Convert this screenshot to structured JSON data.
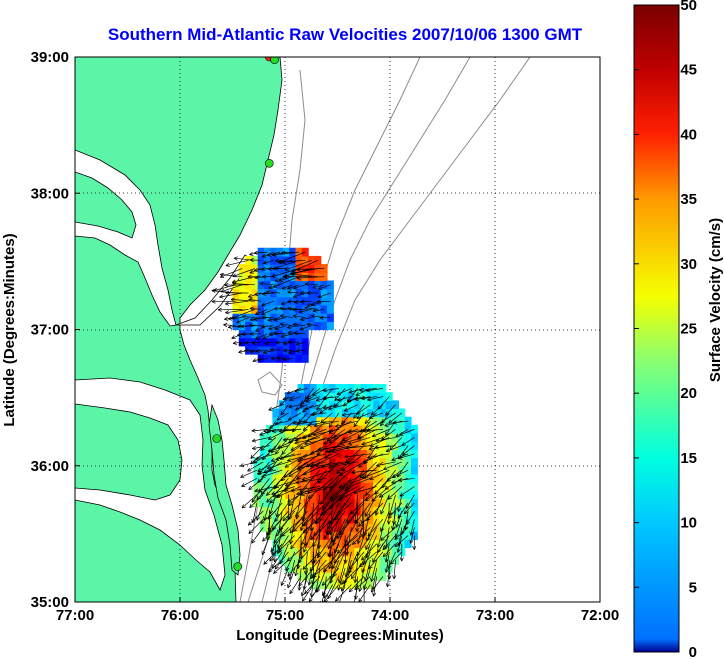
{
  "chart_data": {
    "type": "heatmap",
    "title": "Southern Mid-Atlantic Raw Velocities 2007/10/06 1300 GMT",
    "xlabel": "Longitude (Degrees:Minutes)",
    "ylabel": "Latitude (Degrees:Minutes)",
    "xlim": [
      -77,
      -72
    ],
    "ylim": [
      35,
      39
    ],
    "x_ticks": [
      {
        "value": -77,
        "label": "77:00"
      },
      {
        "value": -76,
        "label": "76:00"
      },
      {
        "value": -75,
        "label": "75:00"
      },
      {
        "value": -74,
        "label": "74:00"
      },
      {
        "value": -73,
        "label": "73:00"
      },
      {
        "value": -72,
        "label": "72:00"
      }
    ],
    "y_ticks": [
      {
        "value": 35,
        "label": "35:00"
      },
      {
        "value": 36,
        "label": "36:00"
      },
      {
        "value": 37,
        "label": "37:00"
      },
      {
        "value": 38,
        "label": "38:00"
      },
      {
        "value": 39,
        "label": "39:00"
      }
    ],
    "grid": true,
    "colorbar": {
      "label": "Surface Velocity (cm/s)",
      "range": [
        0,
        50
      ],
      "ticks": [
        "0",
        "5",
        "10",
        "15",
        "20",
        "25",
        "30",
        "35",
        "40",
        "45",
        "50"
      ],
      "colormap": "jet"
    },
    "colors": {
      "land": "#5cf5a8",
      "title": "#0000ff",
      "bathymetry": "#8c8c8c",
      "station": "#22dd22",
      "station_alt": "#ff2020"
    },
    "stations": [
      {
        "lon": -75.15,
        "lat": 39.0,
        "status": "red"
      },
      {
        "lon": -75.1,
        "lat": 38.98,
        "status": "green"
      },
      {
        "lon": -75.15,
        "lat": 38.22,
        "status": "green"
      },
      {
        "lon": -75.65,
        "lat": 36.2,
        "status": "green"
      },
      {
        "lon": -75.45,
        "lat": 35.26,
        "status": "green"
      }
    ],
    "regions": [
      {
        "name": "north",
        "lon_range": [
          -75.5,
          -74.55
        ],
        "lat_range": [
          36.7,
          37.6
        ],
        "speed_range": [
          5,
          45
        ]
      },
      {
        "name": "south",
        "lon_range": [
          -75.3,
          -73.75
        ],
        "lat_range": [
          35.1,
          36.6
        ],
        "speed_range": [
          5,
          50
        ]
      }
    ]
  }
}
